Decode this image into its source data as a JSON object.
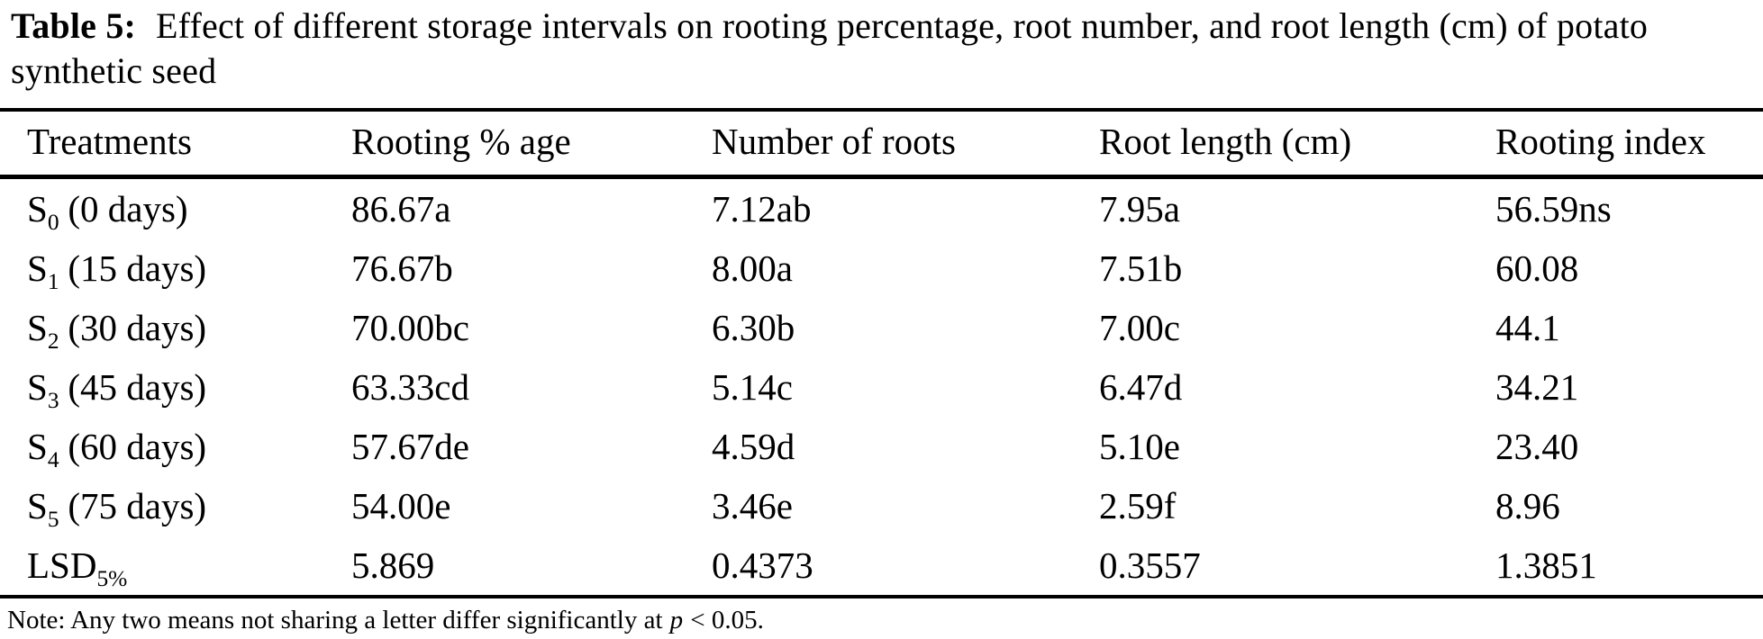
{
  "table": {
    "caption": {
      "label": "Table 5:",
      "text": "Effect of different storage intervals on rooting percentage, root number, and root length (cm) of potato synthetic seed"
    },
    "columns": {
      "treatments": "Treatments",
      "rooting_pct": "Rooting % age",
      "num_roots": "Number of roots",
      "root_length": "Root length (cm)",
      "rooting_index": "Rooting index"
    },
    "rows": [
      {
        "treatment": {
          "base": "S",
          "sub": "0",
          "rest": "(0 days)"
        },
        "rooting_pct": "86.67a",
        "num_roots": "7.12ab",
        "root_length": "7.95a",
        "rooting_index": "56.59ns"
      },
      {
        "treatment": {
          "base": "S",
          "sub": "1",
          "rest": "(15 days)"
        },
        "rooting_pct": "76.67b",
        "num_roots": "8.00a",
        "root_length": "7.51b",
        "rooting_index": "60.08"
      },
      {
        "treatment": {
          "base": "S",
          "sub": "2",
          "rest": "(30 days)"
        },
        "rooting_pct": "70.00bc",
        "num_roots": "6.30b",
        "root_length": "7.00c",
        "rooting_index": "44.1"
      },
      {
        "treatment": {
          "base": "S",
          "sub": "3",
          "rest": "(45 days)"
        },
        "rooting_pct": "63.33cd",
        "num_roots": "5.14c",
        "root_length": "6.47d",
        "rooting_index": "34.21"
      },
      {
        "treatment": {
          "base": "S",
          "sub": "4",
          "rest": "(60 days)"
        },
        "rooting_pct": "57.67de",
        "num_roots": "4.59d",
        "root_length": "5.10e",
        "rooting_index": "23.40"
      },
      {
        "treatment": {
          "base": "S",
          "sub": "5",
          "rest": "(75 days)"
        },
        "rooting_pct": "54.00e",
        "num_roots": "3.46e",
        "root_length": "2.59f",
        "rooting_index": "8.96"
      },
      {
        "treatment": {
          "base": "LSD",
          "sub": "5%",
          "rest": ""
        },
        "rooting_pct": "5.869",
        "num_roots": "0.4373",
        "root_length": "0.3557",
        "rooting_index": "1.3851"
      }
    ],
    "note": {
      "prefix": "Note: Any two means not sharing a letter differ significantly at",
      "italic": "p",
      "suffix": "< 0.05."
    }
  }
}
